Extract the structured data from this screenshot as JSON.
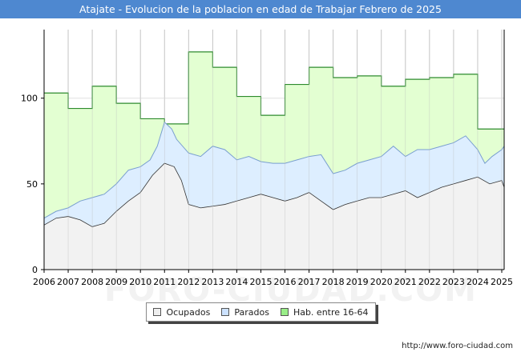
{
  "title": "Atajate - Evolucion de la poblacion en edad de Trabajar Febrero de 2025",
  "watermark": "FORO-CIUDAD.COM",
  "footer_url": "http://www.foro-ciudad.com",
  "colors": {
    "title_bg": "#4e88d0",
    "hab_fill": "#e3ffd2",
    "hab_line": "#2e8b2e",
    "parados_fill": "#ddeeff",
    "parados_line": "#7a9fd0",
    "ocupados_fill": "#f2f2f2",
    "ocupados_line": "#333333",
    "legend_hab": "#99ee88",
    "legend_parados": "#cce2ff",
    "legend_ocupados": "#eeeeee"
  },
  "chart_data": {
    "type": "area",
    "title": "Atajate - Evolucion de la poblacion en edad de Trabajar Febrero de 2025",
    "xlabel": "",
    "ylabel": "",
    "xlim": [
      2006,
      2025.1
    ],
    "ylim": [
      0,
      140
    ],
    "y_ticks": [
      0,
      50,
      100
    ],
    "x_ticks": [
      "2006",
      "2007",
      "2008",
      "2009",
      "2010",
      "2011",
      "2012",
      "2013",
      "2014",
      "2015",
      "2016",
      "2017",
      "2018",
      "2019",
      "2020",
      "2021",
      "2022",
      "2023",
      "2024",
      "2025"
    ],
    "grid": true,
    "legend_position": "bottom-center",
    "series": [
      {
        "name": "Hab. entre 16-64",
        "kind": "step",
        "x": [
          2006,
          2007,
          2008,
          2009,
          2010,
          2011,
          2012,
          2013,
          2014,
          2015,
          2016,
          2017,
          2018,
          2019,
          2020,
          2021,
          2022,
          2023,
          2024,
          2025.1
        ],
        "values": [
          103,
          94,
          107,
          97,
          88,
          85,
          127,
          118,
          101,
          90,
          108,
          118,
          112,
          113,
          107,
          111,
          112,
          114,
          82,
          82
        ]
      },
      {
        "name": "Parados",
        "kind": "total",
        "x": [
          2006,
          2006.5,
          2007,
          2007.5,
          2008,
          2008.5,
          2009,
          2009.5,
          2010,
          2010.4,
          2010.7,
          2011,
          2011.3,
          2011.5,
          2012,
          2012.5,
          2013,
          2013.5,
          2014,
          2014.5,
          2015,
          2015.5,
          2016,
          2016.5,
          2017,
          2017.5,
          2018,
          2018.5,
          2019,
          2019.5,
          2020,
          2020.5,
          2021,
          2021.5,
          2022,
          2022.5,
          2023,
          2023.5,
          2024,
          2024.3,
          2024.6,
          2025,
          2025.1
        ],
        "values": [
          30,
          34,
          36,
          40,
          42,
          44,
          50,
          58,
          60,
          64,
          72,
          86,
          82,
          76,
          68,
          66,
          72,
          70,
          64,
          66,
          63,
          62,
          62,
          64,
          66,
          67,
          56,
          58,
          62,
          64,
          66,
          72,
          66,
          70,
          70,
          72,
          74,
          78,
          70,
          62,
          66,
          70,
          72
        ]
      },
      {
        "name": "Ocupados",
        "kind": "line",
        "x": [
          2006,
          2006.5,
          2007,
          2007.5,
          2008,
          2008.5,
          2009,
          2009.5,
          2010,
          2010.5,
          2011,
          2011.4,
          2011.7,
          2012,
          2012.5,
          2013,
          2013.5,
          2014,
          2014.5,
          2015,
          2015.5,
          2016,
          2016.5,
          2017,
          2017.5,
          2018,
          2018.5,
          2019,
          2019.5,
          2020,
          2020.5,
          2021,
          2021.5,
          2022,
          2022.5,
          2023,
          2023.5,
          2024,
          2024.5,
          2025,
          2025.1
        ],
        "values": [
          26,
          30,
          31,
          29,
          25,
          27,
          34,
          40,
          45,
          55,
          62,
          60,
          52,
          38,
          36,
          37,
          38,
          40,
          42,
          44,
          42,
          40,
          42,
          45,
          40,
          35,
          38,
          40,
          42,
          42,
          44,
          46,
          42,
          45,
          48,
          50,
          52,
          54,
          50,
          52,
          48
        ]
      }
    ]
  },
  "legend": {
    "ocupados": "Ocupados",
    "parados": "Parados",
    "hab": "Hab. entre 16-64"
  }
}
